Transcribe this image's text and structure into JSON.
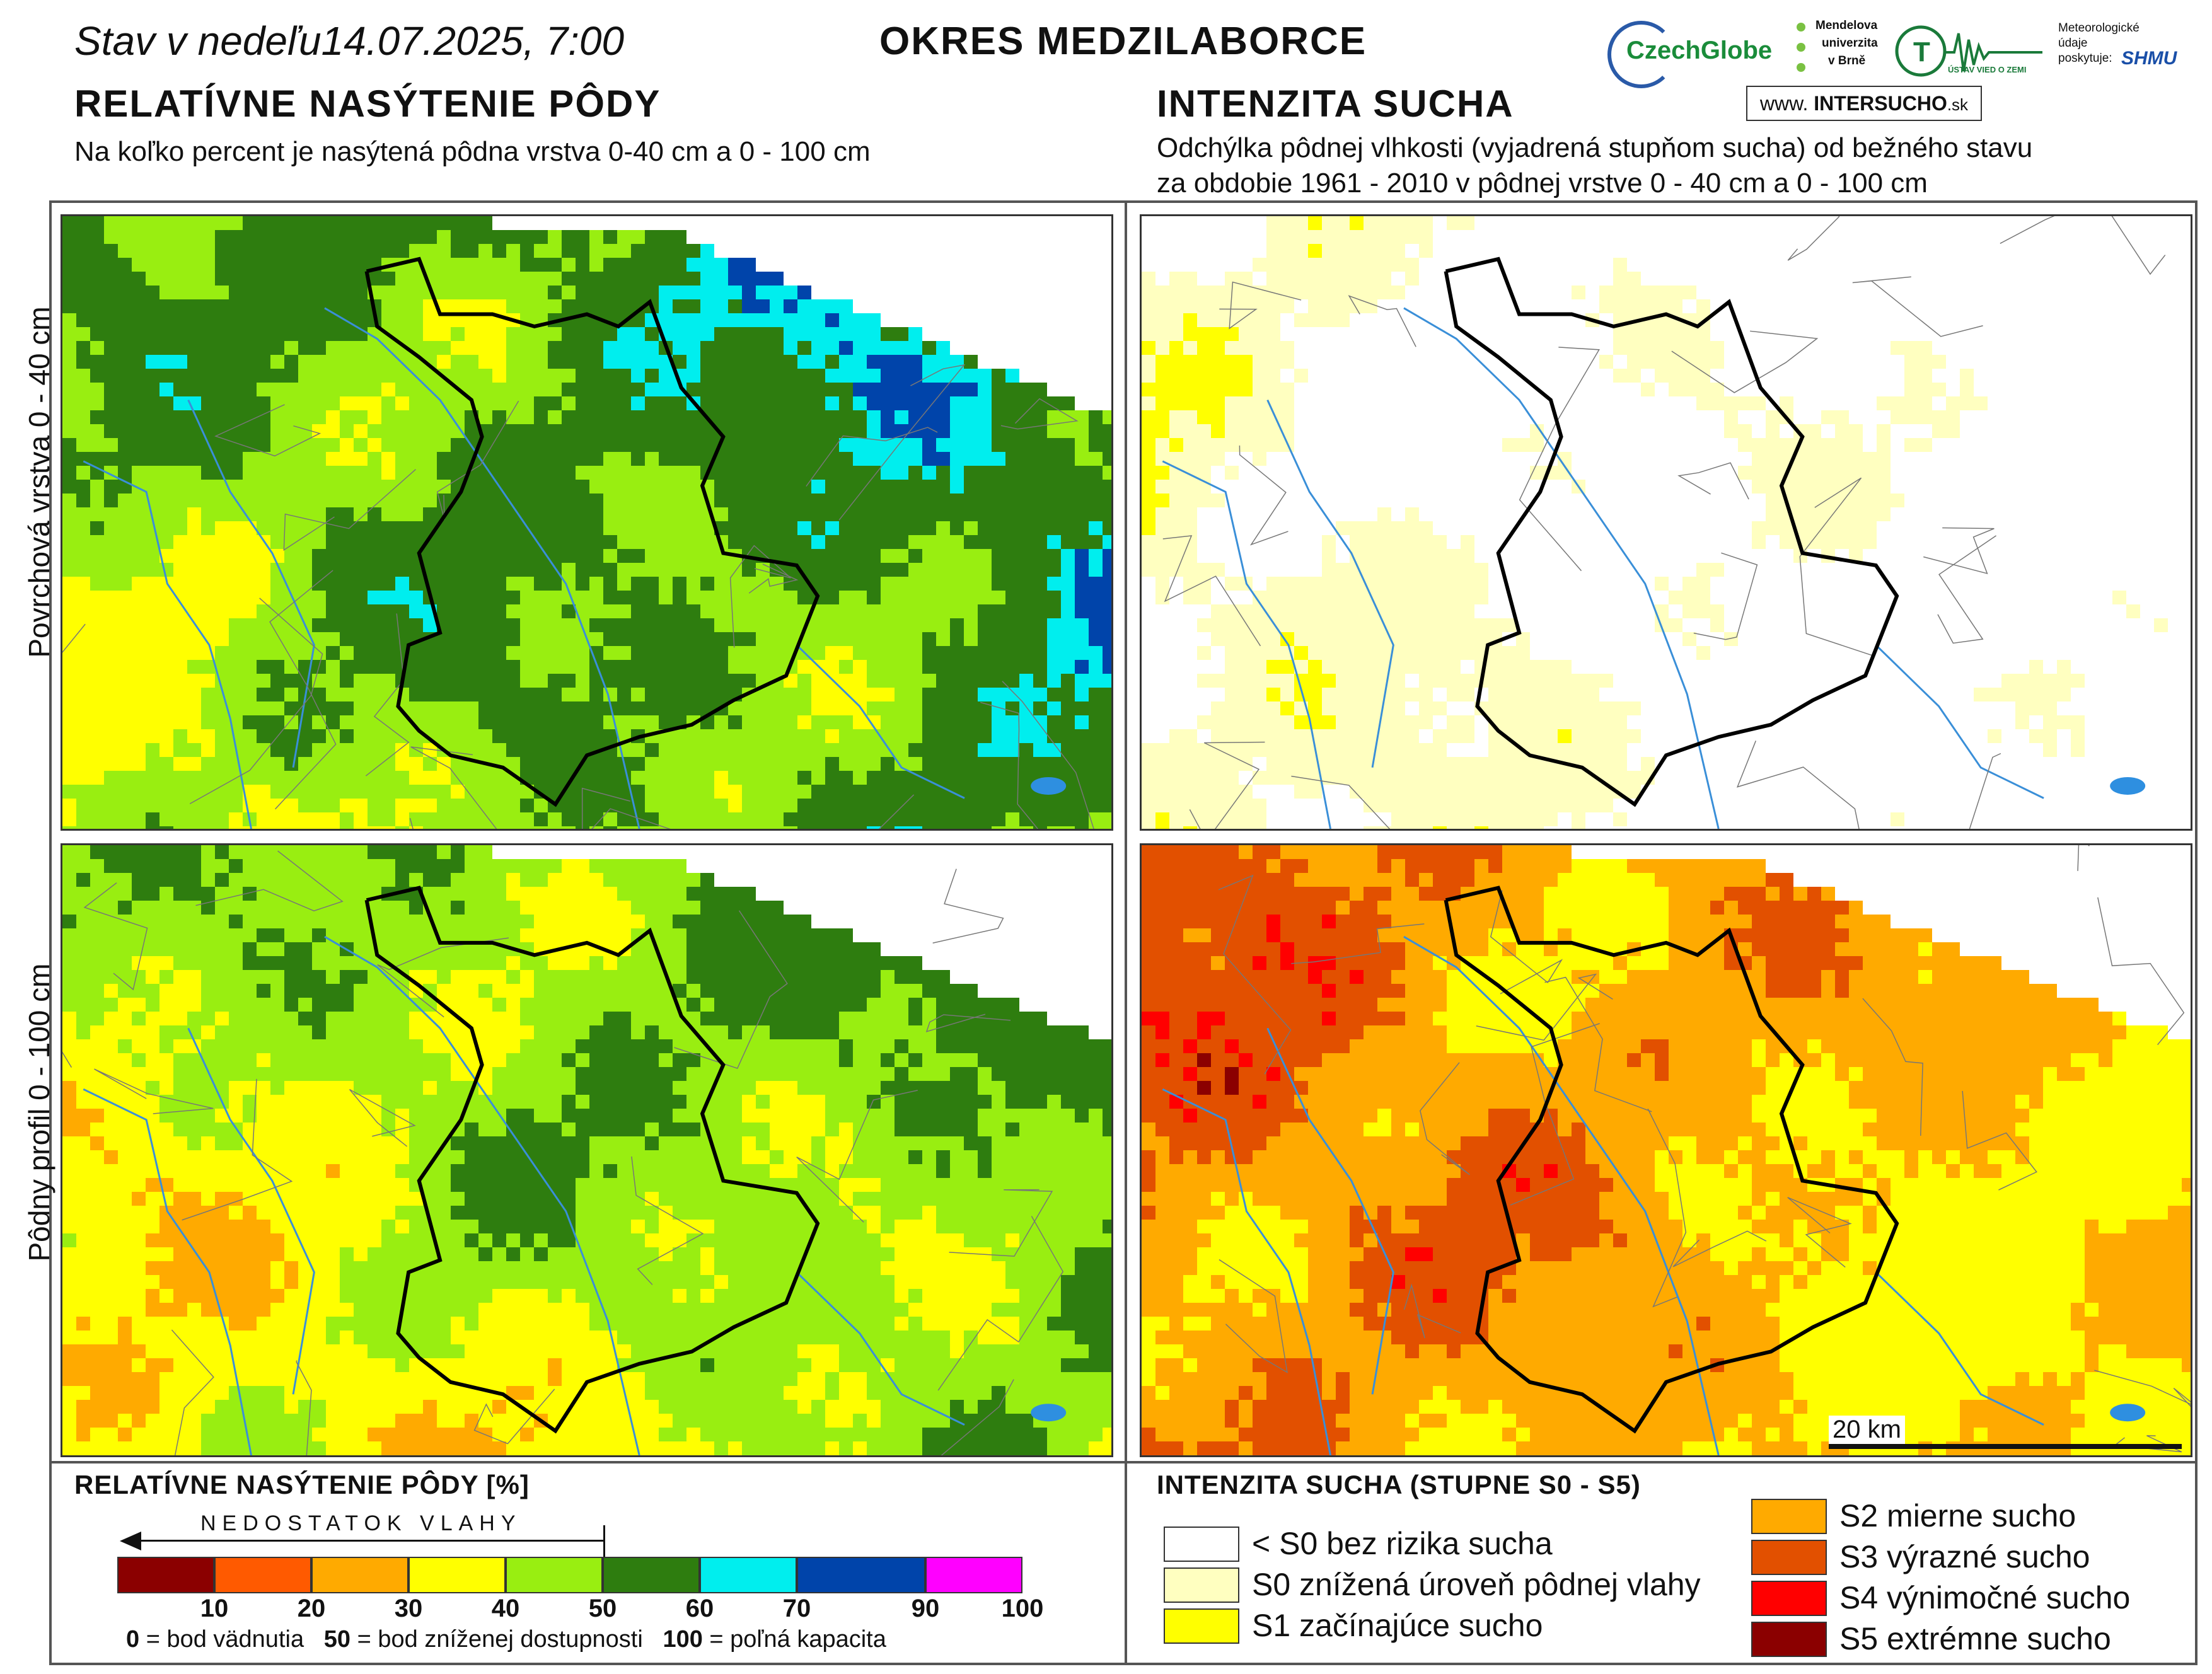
{
  "header": {
    "date_prefix": "Stav v nedeľu",
    "date_value": "14.07.2025, 7:00",
    "district": "OKRES MEDZILABORCE"
  },
  "left": {
    "title": "RELATÍVNE NASÝTENIE PÔDY",
    "subtitle": "Na koľko percent je nasýtená pôdna vrstva 0-40 cm a 0 - 100 cm"
  },
  "right": {
    "title": "INTENZITA SUCHA",
    "subtitle_line1": "Odchýlka pôdnej vlhkosti (vyjadrená stupňom sucha) od bežného stavu",
    "subtitle_line2": "za obdobie 1961 - 2010 v pôdnej vrstve 0 - 40 cm a 0 - 100 cm"
  },
  "logos": {
    "czechglobe": "CzechGlobe",
    "mendelu": [
      "Mendelova",
      "univerzita",
      "v Brně"
    ],
    "uvz": "ÚSTAV VIED O ZEMI",
    "shmu_caption": [
      "Meteorologické",
      "údaje",
      "poskytuje:"
    ],
    "shmu": "SHMU",
    "intersucho_prefix": "www.",
    "intersucho_name": "INTERSUCHO",
    "intersucho_suffix": ".sk"
  },
  "row_labels": {
    "top": "Povrchová vrstva 0 - 40 cm",
    "bottom": "Pôdny profil 0 - 100 cm"
  },
  "scalebar": "20 km",
  "legend_saturation": {
    "title": "RELATÍVNE NASÝTENIE PÔDY [%]",
    "arrow_label": "NEDOSTATOK VLAHY",
    "colors": [
      "#8b0000",
      "#ff5a00",
      "#ffaa00",
      "#ffff00",
      "#99ee11",
      "#2e7d0f",
      "#00eeee",
      "#0044aa",
      "#ff00ff"
    ],
    "ticks": [
      "10",
      "20",
      "30",
      "40",
      "50",
      "60",
      "70",
      "90",
      "100"
    ],
    "note_0_value": "0",
    "note_0_text": " = bod vädnutia",
    "note_50_value": "50",
    "note_50_text": " = bod zníženej dostupnosti",
    "note_100_value": "100",
    "note_100_text": " = poľná kapacita"
  },
  "legend_drought": {
    "title": "INTENZITA SUCHA (STUPNE S0 - S5)",
    "items": [
      {
        "label": "< S0 bez rizika sucha",
        "color": "#ffffff"
      },
      {
        "label": "S0 znížená úroveň pôdnej vlahy",
        "color": "#ffffc0"
      },
      {
        "label": "S1 začínajúce sucho",
        "color": "#ffff00"
      },
      {
        "label": "S2 mierne sucho",
        "color": "#ffaa00"
      },
      {
        "label": "S3 výrazné sucho",
        "color": "#e25000"
      },
      {
        "label": "S4 výnimočné sucho",
        "color": "#ff0000"
      },
      {
        "label": "S5 extrémne sucho",
        "color": "#8b0000"
      }
    ]
  }
}
